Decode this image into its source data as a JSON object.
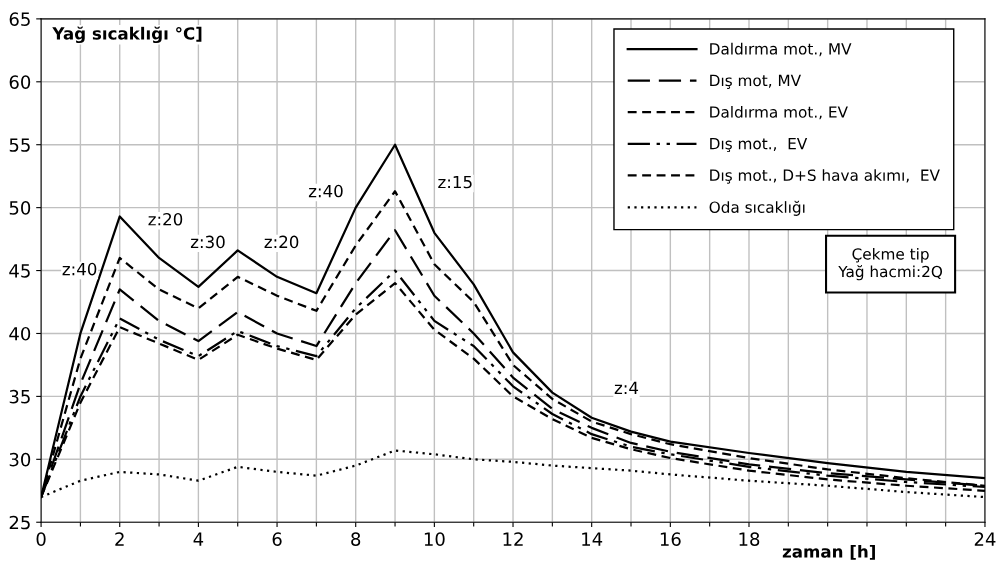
{
  "chart_data": {
    "type": "line",
    "ylabel": "Yağ sıcaklığı °C]",
    "xlabel": "zaman [h]",
    "x": [
      0,
      1,
      2,
      3,
      4,
      5,
      6,
      7,
      8,
      9,
      10,
      11,
      12,
      13,
      14,
      15,
      16,
      18,
      20,
      22,
      24
    ],
    "series": [
      {
        "name": "Daldırma mot., MV",
        "color": "#000000",
        "line_style": "solid",
        "values": [
          27,
          40,
          49.3,
          46,
          43.7,
          46.6,
          44.5,
          43.2,
          50,
          55,
          48,
          43.9,
          38.5,
          35.3,
          33.3,
          32.2,
          31.4,
          30.5,
          29.7,
          29,
          28.5
        ]
      },
      {
        "name": "Dış mot, MV",
        "color": "#000000",
        "line_style": "longdash",
        "values": [
          27,
          36,
          43.5,
          41,
          39.4,
          41.7,
          40,
          39,
          44,
          48.2,
          43,
          40,
          36.5,
          34,
          32.5,
          31.3,
          30.6,
          29.6,
          28.9,
          28.4,
          27.9
        ]
      },
      {
        "name": "Daldırma mot., EV",
        "color": "#000000",
        "line_style": "dashed",
        "values": [
          27,
          38,
          46,
          43.5,
          42,
          44.5,
          43,
          41.8,
          47,
          51.3,
          45.5,
          42.5,
          37.5,
          34.8,
          33,
          32,
          31.2,
          30.1,
          29.2,
          28.5,
          27.9
        ]
      },
      {
        "name": "Dış mot.,  EV",
        "color": "#000000",
        "line_style": "dashdotdot",
        "values": [
          27,
          35,
          41.2,
          39.5,
          38.2,
          40.2,
          39,
          38.2,
          42,
          45,
          41,
          39,
          35.8,
          33.6,
          32,
          31,
          30.4,
          29.4,
          28.7,
          28.2,
          27.8
        ]
      },
      {
        "name": "Dış mot., D+S hava akımı,  EV",
        "color": "#000000",
        "line_style": "dashed",
        "values": [
          27,
          34.5,
          40.5,
          39.2,
          37.9,
          39.9,
          38.8,
          37.9,
          41.5,
          44,
          40.3,
          38,
          35,
          33.2,
          31.7,
          30.8,
          30.1,
          29.1,
          28.4,
          27.9,
          27.5
        ]
      },
      {
        "name": "Oda sıcaklığı",
        "color": "#000000",
        "line_style": "dotted",
        "values": [
          27,
          28.3,
          29,
          28.8,
          28.3,
          29.4,
          29,
          28.7,
          29.5,
          30.7,
          30.4,
          30,
          29.8,
          29.5,
          29.3,
          29.1,
          28.8,
          28.3,
          27.9,
          27.4,
          27
        ]
      }
    ],
    "annotations": [
      "z:40",
      "z:20",
      "z:30",
      "z:20",
      "z:40",
      "z:15",
      "z:4",
      "Çekme tip\nYağ hacmi:2Q"
    ],
    "xlim": [
      0,
      24
    ],
    "ylim": [
      25,
      65
    ],
    "xticks": [
      0,
      {
        "value": 1,
        "label": null
      },
      2,
      {
        "value": 3,
        "label": null
      },
      4,
      {
        "value": 5,
        "label": null
      },
      6,
      {
        "value": 7,
        "label": null
      },
      8,
      {
        "value": 9,
        "label": null
      },
      10,
      {
        "value": 11,
        "label": null
      },
      12,
      {
        "value": 13,
        "label": null
      },
      14,
      {
        "value": 15,
        "label": null
      },
      16,
      {
        "value": 17,
        "label": null
      },
      18,
      {
        "value": 19,
        "label": null
      },
      {
        "value": 20,
        "label": null
      },
      {
        "value": 21,
        "label": null
      },
      {
        "value": 22,
        "label": null
      },
      {
        "value": 23,
        "label": null
      },
      24
    ],
    "yticks": [
      25,
      30,
      35,
      40,
      45,
      50,
      55,
      60,
      65
    ],
    "grid": true,
    "legend": "top right"
  }
}
